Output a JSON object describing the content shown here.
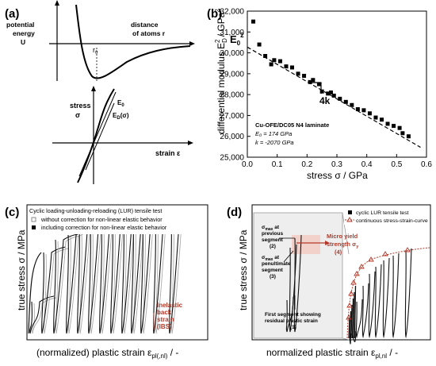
{
  "panels": {
    "a": {
      "letter": "(a)",
      "y_label_line1": "potential",
      "y_label_line2": "energy",
      "y_label_line3": "U",
      "x_label_line1": "distance",
      "x_label_line2": "of atoms r",
      "r0_label": "r",
      "r0_sub": "0",
      "stress_label": "stress",
      "sigma_label": "σ",
      "strain_label": "strain ε",
      "e0_label": "E",
      "e0_sub": "0",
      "e0s_label": "E",
      "e0s_sub": "D",
      "e0s_tail": "(σ)"
    },
    "b": {
      "letter": "(b)",
      "ylabel": "differential modulus E",
      "ylabel_sub": "D",
      "ylabel_tail": " / GPa",
      "xlabel": "stress σ / GPa",
      "e0_label": "E",
      "e0_sub": "0",
      "e0_sup": "2",
      "slope_label": "4k",
      "legend_line1": "Cu-OFE/DC05 N4 laminate",
      "legend_line2": "E₀ = 174 GPa",
      "legend_line3": "k = -2070 GPa"
    },
    "c": {
      "letter": "(c)",
      "ylabel": "true stress σ / MPa",
      "xlabel": "(normalized) plastic strain ε",
      "xlabel_sub": "pl(,nl)",
      "xlabel_tail": " / -",
      "legend_title": "Cyclic loading-unloading-reloading (LUR) tensile test",
      "legend_item1": "without correction for non-linear elastic behavior",
      "legend_item2": "including correction for non-linear elastic behavior",
      "ibs_line1": "Inelastic",
      "ibs_line2": "back",
      "ibs_line3": "strain",
      "ibs_line4": "(IBS)"
    },
    "d": {
      "letter": "(d)",
      "ylabel": "true stress σ / MPa",
      "xlabel": "normalized plastic strain ε",
      "xlabel_sub": "pl,nl",
      "xlabel_tail": " / -",
      "legend_item1": "cyclic LUR tensile test",
      "legend_item2": "continuous stress-strain-curve",
      "ann1_line1": "σ",
      "ann1_sub": "max",
      "ann1_line1b": " at",
      "ann1_line2": "previous",
      "ann1_line3": "segment",
      "ann1_line4": "(2)",
      "ann2_line1": "σ",
      "ann2_sub": "max",
      "ann2_line1b": " at",
      "ann2_line2": "penultimate",
      "ann2_line3": "segment",
      "ann2_line4": "(3)",
      "ann3_line1": "First segment showing",
      "ann3_line2": "residual plastic strain",
      "ann3_line3": "(1)",
      "micro_line1": "Micro yield",
      "micro_line2": "strength σ",
      "micro_sub": "y",
      "micro_line3": "(4)"
    }
  },
  "chart_data": [
    {
      "panel": "b",
      "type": "scatter",
      "xlabel": "stress σ / GPa",
      "ylabel": "differential modulus E_D² / GPa²",
      "xlim": [
        0.0,
        0.6
      ],
      "ylim": [
        25000,
        32000
      ],
      "xticks": [
        0.0,
        0.1,
        0.2,
        0.3,
        0.4,
        0.5,
        0.6
      ],
      "xtick_labels": [
        "0.0",
        "0.1",
        "0.2",
        "0.3",
        "0.4",
        "0.5",
        "0.6"
      ],
      "yticks": [
        25000,
        26000,
        27000,
        28000,
        29000,
        30000,
        31000,
        32000
      ],
      "ytick_labels": [
        "25,000",
        "26,000",
        "27,000",
        "28,000",
        "29,000",
        "30,000",
        "31,000",
        "32,000"
      ],
      "points": [
        [
          0.02,
          31500
        ],
        [
          0.04,
          30400
        ],
        [
          0.06,
          29850
        ],
        [
          0.08,
          29450
        ],
        [
          0.09,
          29650
        ],
        [
          0.11,
          29600
        ],
        [
          0.13,
          29350
        ],
        [
          0.15,
          29300
        ],
        [
          0.17,
          29000
        ],
        [
          0.19,
          28900
        ],
        [
          0.21,
          28600
        ],
        [
          0.22,
          28700
        ],
        [
          0.24,
          28500
        ],
        [
          0.25,
          28150
        ],
        [
          0.27,
          28050
        ],
        [
          0.28,
          28100
        ],
        [
          0.29,
          27950
        ],
        [
          0.31,
          27800
        ],
        [
          0.33,
          27650
        ],
        [
          0.35,
          27500
        ],
        [
          0.37,
          27300
        ],
        [
          0.39,
          27250
        ],
        [
          0.41,
          27100
        ],
        [
          0.43,
          26900
        ],
        [
          0.45,
          26800
        ],
        [
          0.47,
          26600
        ],
        [
          0.49,
          26500
        ],
        [
          0.51,
          26400
        ],
        [
          0.52,
          26150
        ],
        [
          0.54,
          26000
        ]
      ],
      "fit_line": {
        "E0_squared": 30276,
        "slope": -8280
      },
      "grid": false
    },
    {
      "panel": "c",
      "type": "line",
      "series": [
        {
          "label": "without correction for non-linear elastic behavior",
          "color": "#aaaaaa"
        },
        {
          "label": "including correction for non-linear elastic behavior",
          "color": "#111111"
        }
      ],
      "cycles": 13
    },
    {
      "panel": "d",
      "type": "line",
      "series": [
        {
          "label": "cyclic LUR tensile test",
          "color": "#111111"
        },
        {
          "label": "continuous stress-strain-curve",
          "color": "#b23a2a"
        }
      ]
    }
  ]
}
